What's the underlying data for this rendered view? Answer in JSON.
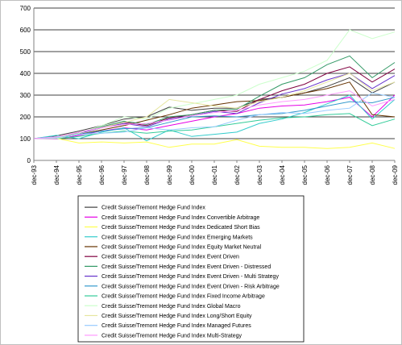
{
  "chart_data": {
    "type": "line",
    "title": "",
    "xlabel": "",
    "ylabel": "",
    "ylim": [
      0,
      700
    ],
    "yticks": [
      0,
      100,
      200,
      300,
      400,
      500,
      600,
      700
    ],
    "x_labels": [
      "dec-93",
      "dec-94",
      "dec-95",
      "dec-96",
      "dec-97",
      "dec-98",
      "dec-99",
      "dec-00",
      "dec-01",
      "dec-02",
      "dec-03",
      "dec-04",
      "dec-05",
      "dec-06",
      "dec-07",
      "dec-08",
      "dec-09"
    ],
    "grid": "horizontal",
    "legend_position": "bottom",
    "series": [
      {
        "name": "Credit Suisse/Tremont Hedge Fund Index",
        "color": "#404040",
        "values": [
          100,
          113,
          135,
          160,
          190,
          200,
          245,
          230,
          240,
          240,
          280,
          290,
          310,
          340,
          380,
          310,
          360
        ]
      },
      {
        "name": "Credit Suisse/Tremont Hedge Fund Index Convertible Arbitrage",
        "color": "#e600e6",
        "values": [
          100,
          98,
          115,
          135,
          150,
          140,
          160,
          180,
          200,
          215,
          240,
          250,
          255,
          270,
          290,
          200,
          300
        ]
      },
      {
        "name": "Credit Suisse/Tremont Hedge Fund Index Dedicated Short Bias",
        "color": "#ffff4d",
        "values": [
          100,
          102,
          80,
          85,
          80,
          85,
          60,
          75,
          75,
          95,
          65,
          60,
          60,
          55,
          60,
          80,
          55
        ]
      },
      {
        "name": "Credit Suisse/Tremont Hedge Fund Index Emerging Markets",
        "color": "#33cccc",
        "values": [
          100,
          115,
          100,
          130,
          150,
          90,
          140,
          110,
          120,
          130,
          170,
          190,
          220,
          260,
          300,
          190,
          280
        ]
      },
      {
        "name": "Credit Suisse/Tremont Hedge Fund Index Equity Market Neutral",
        "color": "#663300",
        "values": [
          100,
          105,
          120,
          140,
          160,
          185,
          210,
          240,
          255,
          270,
          275,
          290,
          310,
          330,
          360,
          210,
          200
        ]
      },
      {
        "name": "Credit Suisse/Tremont Hedge Fund Index Event Driven",
        "color": "#800040",
        "values": [
          100,
          105,
          125,
          150,
          175,
          160,
          195,
          210,
          230,
          225,
          280,
          320,
          350,
          400,
          430,
          360,
          420
        ]
      },
      {
        "name": "Credit Suisse/Tremont Hedge Fund Index Event Driven - Distressed",
        "color": "#339966",
        "values": [
          100,
          105,
          125,
          155,
          180,
          165,
          200,
          210,
          230,
          235,
          295,
          350,
          380,
          440,
          480,
          380,
          450
        ]
      },
      {
        "name": "Credit Suisse/Tremont Hedge Fund Index Event Driven - Multi Strategy",
        "color": "#6633cc",
        "values": [
          100,
          105,
          125,
          150,
          170,
          155,
          190,
          205,
          225,
          215,
          265,
          305,
          330,
          370,
          400,
          330,
          390
        ]
      },
      {
        "name": "Credit Suisse/Tremont Hedge Fund Index Event Driven - Risk Arbitrage",
        "color": "#3399cc",
        "values": [
          100,
          108,
          120,
          135,
          145,
          150,
          175,
          200,
          205,
          200,
          210,
          215,
          230,
          250,
          270,
          265,
          290
        ]
      },
      {
        "name": "Credit Suisse/Tremont Hedge Fund Index Fixed Income Arbitrage",
        "color": "#33cc99",
        "values": [
          100,
          100,
          110,
          125,
          135,
          125,
          135,
          140,
          155,
          170,
          185,
          195,
          200,
          210,
          215,
          160,
          190
        ]
      },
      {
        "name": "Credit Suisse/Tremont Hedge Fund Index Global Macro",
        "color": "#ccffcc",
        "values": [
          100,
          100,
          125,
          160,
          200,
          190,
          240,
          260,
          280,
          300,
          350,
          380,
          410,
          460,
          600,
          560,
          590
        ]
      },
      {
        "name": "Credit Suisse/Tremont Hedge Fund Index Long/Short Equity",
        "color": "#e6e6a0",
        "values": [
          100,
          105,
          130,
          150,
          175,
          200,
          280,
          265,
          250,
          240,
          270,
          290,
          320,
          360,
          400,
          320,
          360
        ]
      },
      {
        "name": "Credit Suisse/Tremont Hedge Fund Index Managed Futures",
        "color": "#99ccff",
        "values": [
          100,
          105,
          120,
          125,
          130,
          150,
          140,
          150,
          155,
          185,
          210,
          220,
          215,
          230,
          240,
          310,
          290
        ]
      },
      {
        "name": "Credit Suisse/Tremont Hedge Fund Index Multi-Strategy",
        "color": "#ff99ff",
        "values": [
          100,
          108,
          130,
          150,
          165,
          170,
          185,
          205,
          220,
          230,
          255,
          270,
          280,
          300,
          320,
          250,
          280
        ]
      }
    ]
  }
}
